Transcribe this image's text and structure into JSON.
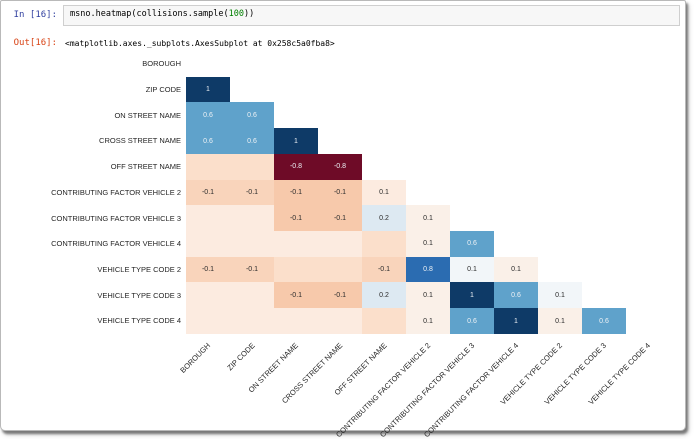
{
  "notebook": {
    "in_prompt": "In [16]:",
    "out_prompt": "Out[16]:",
    "code": {
      "pre": "msno.heatmap(collisions.sample(",
      "number": "100",
      "post": "))"
    },
    "output_text": "<matplotlib.axes._subplots.AxesSubplot at 0x258c5a0fba8>"
  },
  "chart_data": {
    "type": "heatmap",
    "title": "",
    "colormap": "RdBu",
    "layout_note": "lower-triangle nullity correlation matrix, no colorbar, x tick labels rotated 45deg",
    "labels": [
      "BOROUGH",
      "ZIP CODE",
      "ON STREET NAME",
      "CROSS STREET NAME",
      "OFF STREET NAME",
      "CONTRIBUTING FACTOR VEHICLE 2",
      "CONTRIBUTING FACTOR VEHICLE 3",
      "CONTRIBUTING FACTOR VEHICLE 4",
      "VEHICLE TYPE CODE 2",
      "VEHICLE TYPE CODE 3",
      "VEHICLE TYPE CODE 4"
    ],
    "palette": {
      "navy": "#0e3a67",
      "strongBlue": "#2b6cb1",
      "blue": "#5fa2cb",
      "lightBlue": "#dde9f2",
      "blueWhite": "#f2f6f9",
      "pinkWhite": "#faf0e8",
      "peach": "#f9d4bb",
      "peachDark": "#f7c9ab",
      "peachLight": "#fbdfcb",
      "peachXLight": "#fcebe0",
      "maroon": "#6e0b27"
    },
    "dark_text_keys": [
      "navy",
      "strongBlue",
      "blue",
      "maroon"
    ],
    "cells": [
      {
        "r": 1,
        "c": 0,
        "label": "1",
        "value": 1,
        "color": "navy"
      },
      {
        "r": 2,
        "c": 0,
        "label": "0.6",
        "value": 0.6,
        "color": "blue"
      },
      {
        "r": 2,
        "c": 1,
        "label": "0.6",
        "value": 0.6,
        "color": "blue"
      },
      {
        "r": 3,
        "c": 0,
        "label": "0.6",
        "value": 0.6,
        "color": "blue"
      },
      {
        "r": 3,
        "c": 1,
        "label": "0.6",
        "value": 0.6,
        "color": "blue"
      },
      {
        "r": 3,
        "c": 2,
        "label": "1",
        "value": 1,
        "color": "navy"
      },
      {
        "r": 4,
        "c": 0,
        "label": "",
        "value": null,
        "color": "peachLight"
      },
      {
        "r": 4,
        "c": 1,
        "label": "",
        "value": null,
        "color": "peachLight"
      },
      {
        "r": 4,
        "c": 2,
        "label": "-0.8",
        "value": -0.8,
        "color": "maroon"
      },
      {
        "r": 4,
        "c": 3,
        "label": "-0.8",
        "value": -0.8,
        "color": "maroon"
      },
      {
        "r": 5,
        "c": 0,
        "label": "-0.1",
        "value": -0.1,
        "color": "peach"
      },
      {
        "r": 5,
        "c": 1,
        "label": "-0.1",
        "value": -0.1,
        "color": "peach"
      },
      {
        "r": 5,
        "c": 2,
        "label": "-0.1",
        "value": -0.1,
        "color": "peachDark"
      },
      {
        "r": 5,
        "c": 3,
        "label": "-0.1",
        "value": -0.1,
        "color": "peachDark"
      },
      {
        "r": 5,
        "c": 4,
        "label": "0.1",
        "value": 0.1,
        "color": "peachXLight"
      },
      {
        "r": 6,
        "c": 0,
        "label": "",
        "value": null,
        "color": "peachXLight"
      },
      {
        "r": 6,
        "c": 1,
        "label": "",
        "value": null,
        "color": "peachXLight"
      },
      {
        "r": 6,
        "c": 2,
        "label": "-0.1",
        "value": -0.1,
        "color": "peachDark"
      },
      {
        "r": 6,
        "c": 3,
        "label": "-0.1",
        "value": -0.1,
        "color": "peachDark"
      },
      {
        "r": 6,
        "c": 4,
        "label": "0.2",
        "value": 0.2,
        "color": "lightBlue"
      },
      {
        "r": 6,
        "c": 5,
        "label": "0.1",
        "value": 0.1,
        "color": "pinkWhite"
      },
      {
        "r": 7,
        "c": 0,
        "label": "",
        "value": null,
        "color": "peachXLight"
      },
      {
        "r": 7,
        "c": 1,
        "label": "",
        "value": null,
        "color": "peachXLight"
      },
      {
        "r": 7,
        "c": 2,
        "label": "",
        "value": null,
        "color": "peachXLight"
      },
      {
        "r": 7,
        "c": 3,
        "label": "",
        "value": null,
        "color": "peachXLight"
      },
      {
        "r": 7,
        "c": 4,
        "label": "",
        "value": null,
        "color": "peachLight"
      },
      {
        "r": 7,
        "c": 5,
        "label": "0.1",
        "value": 0.1,
        "color": "pinkWhite"
      },
      {
        "r": 7,
        "c": 6,
        "label": "0.6",
        "value": 0.6,
        "color": "blue"
      },
      {
        "r": 8,
        "c": 0,
        "label": "-0.1",
        "value": -0.1,
        "color": "peach"
      },
      {
        "r": 8,
        "c": 1,
        "label": "-0.1",
        "value": -0.1,
        "color": "peach"
      },
      {
        "r": 8,
        "c": 2,
        "label": "",
        "value": null,
        "color": "peachLight"
      },
      {
        "r": 8,
        "c": 3,
        "label": "",
        "value": null,
        "color": "peachLight"
      },
      {
        "r": 8,
        "c": 4,
        "label": "-0.1",
        "value": -0.1,
        "color": "peach"
      },
      {
        "r": 8,
        "c": 5,
        "label": "0.8",
        "value": 0.8,
        "color": "strongBlue"
      },
      {
        "r": 8,
        "c": 6,
        "label": "0.1",
        "value": 0.1,
        "color": "blueWhite"
      },
      {
        "r": 8,
        "c": 7,
        "label": "0.1",
        "value": 0.1,
        "color": "pinkWhite"
      },
      {
        "r": 9,
        "c": 0,
        "label": "",
        "value": null,
        "color": "peachXLight"
      },
      {
        "r": 9,
        "c": 1,
        "label": "",
        "value": null,
        "color": "peachXLight"
      },
      {
        "r": 9,
        "c": 2,
        "label": "-0.1",
        "value": -0.1,
        "color": "peachDark"
      },
      {
        "r": 9,
        "c": 3,
        "label": "-0.1",
        "value": -0.1,
        "color": "peachDark"
      },
      {
        "r": 9,
        "c": 4,
        "label": "0.2",
        "value": 0.2,
        "color": "lightBlue"
      },
      {
        "r": 9,
        "c": 5,
        "label": "0.1",
        "value": 0.1,
        "color": "pinkWhite"
      },
      {
        "r": 9,
        "c": 6,
        "label": "1",
        "value": 1,
        "color": "navy"
      },
      {
        "r": 9,
        "c": 7,
        "label": "0.6",
        "value": 0.6,
        "color": "blue"
      },
      {
        "r": 9,
        "c": 8,
        "label": "0.1",
        "value": 0.1,
        "color": "blueWhite"
      },
      {
        "r": 10,
        "c": 0,
        "label": "",
        "value": null,
        "color": "peachXLight"
      },
      {
        "r": 10,
        "c": 1,
        "label": "",
        "value": null,
        "color": "peachXLight"
      },
      {
        "r": 10,
        "c": 2,
        "label": "",
        "value": null,
        "color": "peachXLight"
      },
      {
        "r": 10,
        "c": 3,
        "label": "",
        "value": null,
        "color": "peachXLight"
      },
      {
        "r": 10,
        "c": 4,
        "label": "",
        "value": null,
        "color": "peachLight"
      },
      {
        "r": 10,
        "c": 5,
        "label": "0.1",
        "value": 0.1,
        "color": "pinkWhite"
      },
      {
        "r": 10,
        "c": 6,
        "label": "0.6",
        "value": 0.6,
        "color": "blue"
      },
      {
        "r": 10,
        "c": 7,
        "label": "1",
        "value": 1,
        "color": "navy"
      },
      {
        "r": 10,
        "c": 8,
        "label": "0.1",
        "value": 0.1,
        "color": "pinkWhite"
      },
      {
        "r": 10,
        "c": 9,
        "label": "0.6",
        "value": 0.6,
        "color": "blue"
      }
    ]
  }
}
